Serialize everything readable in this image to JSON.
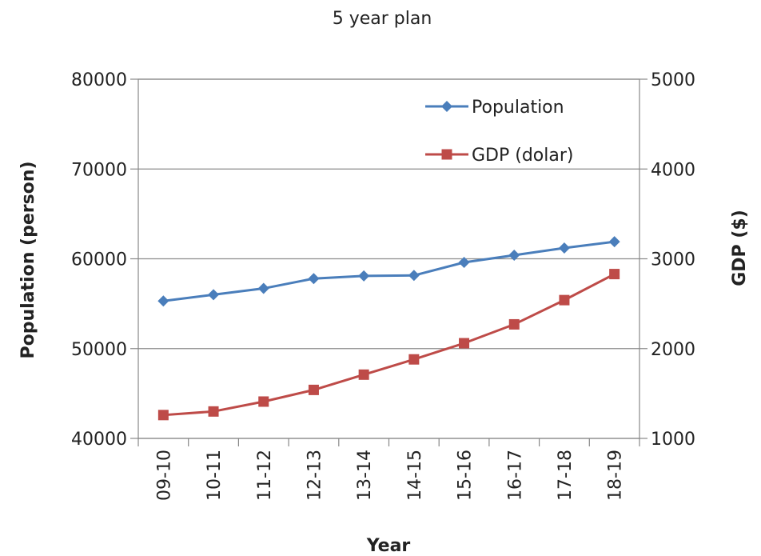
{
  "chart_data": {
    "type": "line",
    "title": "5 year plan",
    "xlabel": "Year",
    "ylabel": "Population (person)",
    "y2label": "GDP ($)",
    "categories": [
      "09-10",
      "10-11",
      "11-12",
      "12-13",
      "13-14",
      "14-15",
      "15-16",
      "16-17",
      "17-18",
      "18-19"
    ],
    "ylim": [
      40000,
      80000
    ],
    "y2lim": [
      1000,
      5000
    ],
    "yticks": [
      "40000",
      "50000",
      "60000",
      "70000",
      "80000"
    ],
    "y2ticks": [
      "1000",
      "2000",
      "3000",
      "4000",
      "5000"
    ],
    "grid": true,
    "legend": "top-right",
    "series": [
      {
        "name": "Population",
        "axis": "left",
        "color": "#4a7ebb",
        "marker": "diamond",
        "values": [
          55300,
          56000,
          56700,
          57800,
          58100,
          58150,
          59600,
          60400,
          61200,
          61900
        ]
      },
      {
        "name": "GDP (dolar)",
        "axis": "right",
        "color": "#be4b48",
        "marker": "square",
        "values": [
          1260,
          1300,
          1410,
          1540,
          1710,
          1880,
          2060,
          2270,
          2540,
          2830
        ]
      }
    ]
  }
}
